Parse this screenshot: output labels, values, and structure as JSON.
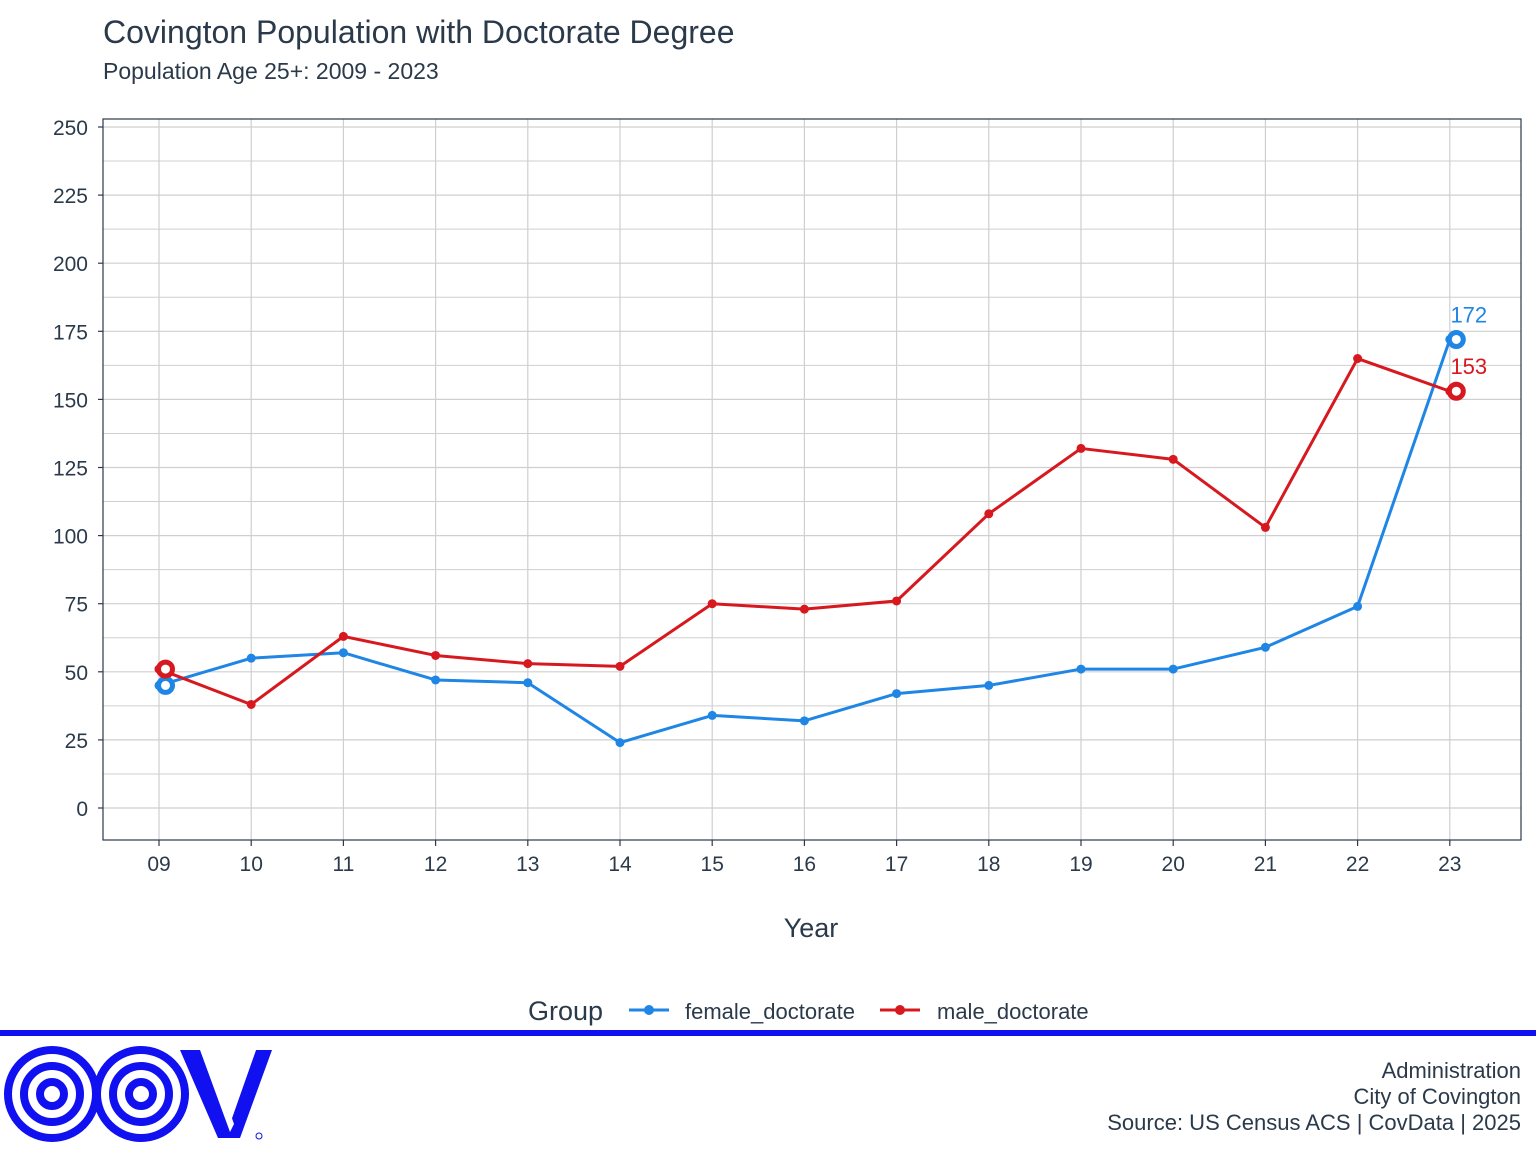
{
  "header": {
    "title": "Covington Population with Doctorate Degree",
    "subtitle": "Population Age 25+: 2009 - 2023"
  },
  "colors": {
    "female": "#1f86e6",
    "male": "#d7191f",
    "axis_text": "#2b3a4a",
    "grid": "#cfcfcf",
    "rule": "#1010f0",
    "logo": "#1010f0"
  },
  "chart_data": {
    "type": "line",
    "title": "Covington Population with Doctorate Degree",
    "subtitle": "Population Age 25+: 2009 - 2023",
    "xlabel": "Year",
    "ylabel": "",
    "categories": [
      "09",
      "10",
      "11",
      "12",
      "13",
      "14",
      "15",
      "16",
      "17",
      "18",
      "19",
      "20",
      "21",
      "22",
      "23"
    ],
    "ylim": [
      0,
      250
    ],
    "yticks": [
      0,
      25,
      50,
      75,
      100,
      125,
      150,
      175,
      200,
      225,
      250
    ],
    "grid": true,
    "legend_position": "bottom",
    "legend_title": "Group",
    "series": [
      {
        "name": "female_doctorate",
        "color": "#1f86e6",
        "values": [
          45,
          55,
          57,
          47,
          46,
          24,
          34,
          32,
          42,
          45,
          51,
          51,
          59,
          74,
          172
        ]
      },
      {
        "name": "male_doctorate",
        "color": "#d7191f",
        "values": [
          51,
          38,
          63,
          56,
          53,
          52,
          75,
          73,
          76,
          108,
          132,
          128,
          103,
          165,
          153
        ]
      }
    ],
    "end_labels": [
      "172",
      "153"
    ]
  },
  "legend": {
    "title": "Group",
    "items": [
      "female_doctorate",
      "male_doctorate"
    ]
  },
  "footer": {
    "line1": "Administration",
    "line2": "City of Covington",
    "line3": "Source: US Census ACS | CovData | 2025",
    "logo_icon": "cov-logo-icon"
  }
}
